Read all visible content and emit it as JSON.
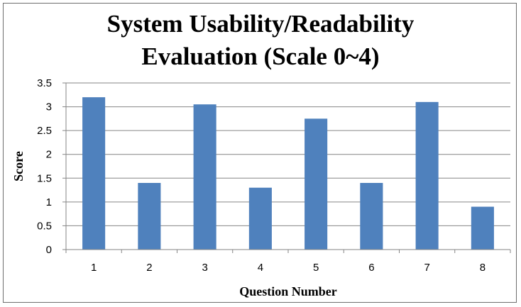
{
  "chart_data": {
    "type": "bar",
    "title_lines": [
      "System Usability/Readability",
      "Evaluation (Scale 0~4)"
    ],
    "xlabel": "Question Number",
    "ylabel": "Score",
    "categories": [
      "1",
      "2",
      "3",
      "4",
      "5",
      "6",
      "7",
      "8"
    ],
    "values": [
      3.2,
      1.4,
      3.05,
      1.3,
      2.75,
      1.4,
      3.1,
      0.9
    ],
    "ylim": [
      0,
      3.5
    ],
    "yticks": [
      "0",
      "0.5",
      "1",
      "1.5",
      "2",
      "2.5",
      "3",
      "3.5"
    ],
    "grid": true,
    "legend": "none",
    "colors": {
      "bar": "#4f81bd",
      "grid": "#868686",
      "axis": "#868686"
    }
  }
}
